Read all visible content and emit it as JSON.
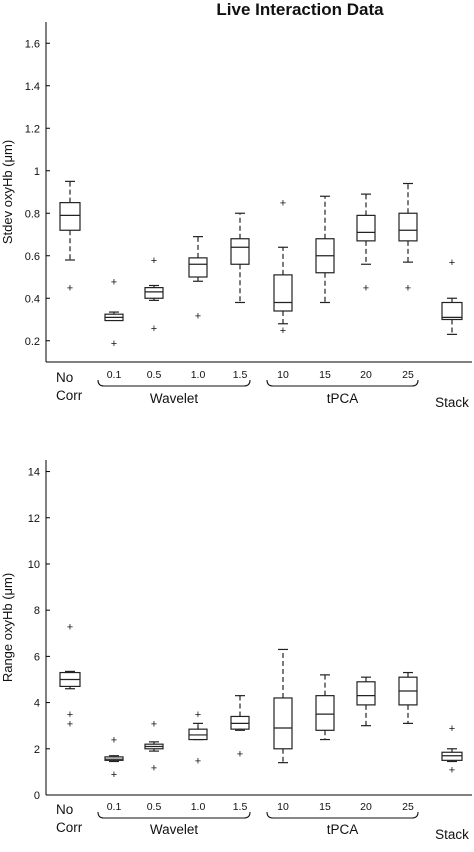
{
  "title": "Live Interaction Data",
  "chart_data": [
    {
      "type": "box",
      "ylabel": "Stdev oxyHb (μm)",
      "ylim": [
        0.1,
        1.7
      ],
      "yticks": [
        "0.2",
        "0.4",
        "0.6",
        "0.8",
        "1",
        "1.2",
        "1.4",
        "1.6"
      ],
      "categories": [
        "No Corr",
        "0.1",
        "0.5",
        "1.0",
        "1.5",
        "10",
        "15",
        "20",
        "25",
        "Stack"
      ],
      "groups": [
        {
          "label": "Wavelet",
          "from": 1,
          "to": 4
        },
        {
          "label": "tPCA",
          "from": 5,
          "to": 8
        }
      ],
      "boxes": [
        {
          "wl": 0.58,
          "q1": 0.72,
          "med": 0.79,
          "q3": 0.85,
          "wh": 0.95,
          "out": [
            0.45
          ]
        },
        {
          "wl": 0.3,
          "q1": 0.295,
          "med": 0.31,
          "q3": 0.325,
          "wh": 0.335,
          "out": [
            0.19,
            0.48
          ]
        },
        {
          "wl": 0.39,
          "q1": 0.4,
          "med": 0.43,
          "q3": 0.45,
          "wh": 0.46,
          "out": [
            0.26,
            0.58
          ]
        },
        {
          "wl": 0.48,
          "q1": 0.5,
          "med": 0.56,
          "q3": 0.59,
          "wh": 0.69,
          "out": [
            0.32
          ]
        },
        {
          "wl": 0.38,
          "q1": 0.56,
          "med": 0.64,
          "q3": 0.68,
          "wh": 0.8,
          "out": []
        },
        {
          "wl": 0.28,
          "q1": 0.34,
          "med": 0.38,
          "q3": 0.51,
          "wh": 0.64,
          "out": [
            0.25,
            0.85
          ]
        },
        {
          "wl": 0.38,
          "q1": 0.52,
          "med": 0.6,
          "q3": 0.68,
          "wh": 0.88,
          "out": []
        },
        {
          "wl": 0.56,
          "q1": 0.67,
          "med": 0.71,
          "q3": 0.79,
          "wh": 0.89,
          "out": [
            0.45
          ]
        },
        {
          "wl": 0.57,
          "q1": 0.67,
          "med": 0.72,
          "q3": 0.8,
          "wh": 0.94,
          "out": [
            0.45
          ]
        },
        {
          "wl": 0.23,
          "q1": 0.3,
          "med": 0.31,
          "q3": 0.38,
          "wh": 0.4,
          "out": [
            0.57
          ]
        }
      ]
    },
    {
      "type": "box",
      "ylabel": "Range oxyHb (μm)",
      "ylim": [
        0,
        14.5
      ],
      "yticks": [
        "0",
        "2",
        "4",
        "6",
        "8",
        "10",
        "12",
        "14"
      ],
      "categories": [
        "No Corr",
        "0.1",
        "0.5",
        "1.0",
        "1.5",
        "10",
        "15",
        "20",
        "25",
        "Stack"
      ],
      "groups": [
        {
          "label": "Wavelet",
          "from": 1,
          "to": 4
        },
        {
          "label": "tPCA",
          "from": 5,
          "to": 8
        }
      ],
      "boxes": [
        {
          "wl": 4.6,
          "q1": 4.7,
          "med": 5.0,
          "q3": 5.3,
          "wh": 5.35,
          "out": [
            3.1,
            3.5,
            7.3
          ]
        },
        {
          "wl": 1.45,
          "q1": 1.5,
          "med": 1.55,
          "q3": 1.65,
          "wh": 1.7,
          "out": [
            0.9,
            2.4
          ]
        },
        {
          "wl": 1.9,
          "q1": 2.0,
          "med": 2.1,
          "q3": 2.2,
          "wh": 2.3,
          "out": [
            1.2,
            3.1
          ]
        },
        {
          "wl": 2.4,
          "q1": 2.4,
          "med": 2.6,
          "q3": 2.85,
          "wh": 3.1,
          "out": [
            1.5,
            3.5
          ]
        },
        {
          "wl": 2.8,
          "q1": 2.85,
          "med": 3.1,
          "q3": 3.4,
          "wh": 4.3,
          "out": [
            1.8
          ]
        },
        {
          "wl": 1.4,
          "q1": 2.0,
          "med": 2.9,
          "q3": 4.2,
          "wh": 6.3,
          "out": []
        },
        {
          "wl": 2.4,
          "q1": 2.8,
          "med": 3.5,
          "q3": 4.3,
          "wh": 5.2,
          "out": []
        },
        {
          "wl": 3.0,
          "q1": 3.9,
          "med": 4.3,
          "q3": 4.9,
          "wh": 5.1,
          "out": []
        },
        {
          "wl": 3.1,
          "q1": 3.9,
          "med": 4.5,
          "q3": 5.1,
          "wh": 5.3,
          "out": []
        },
        {
          "wl": 1.45,
          "q1": 1.5,
          "med": 1.7,
          "q3": 1.85,
          "wh": 2.0,
          "out": [
            1.1,
            2.9
          ]
        }
      ]
    }
  ]
}
